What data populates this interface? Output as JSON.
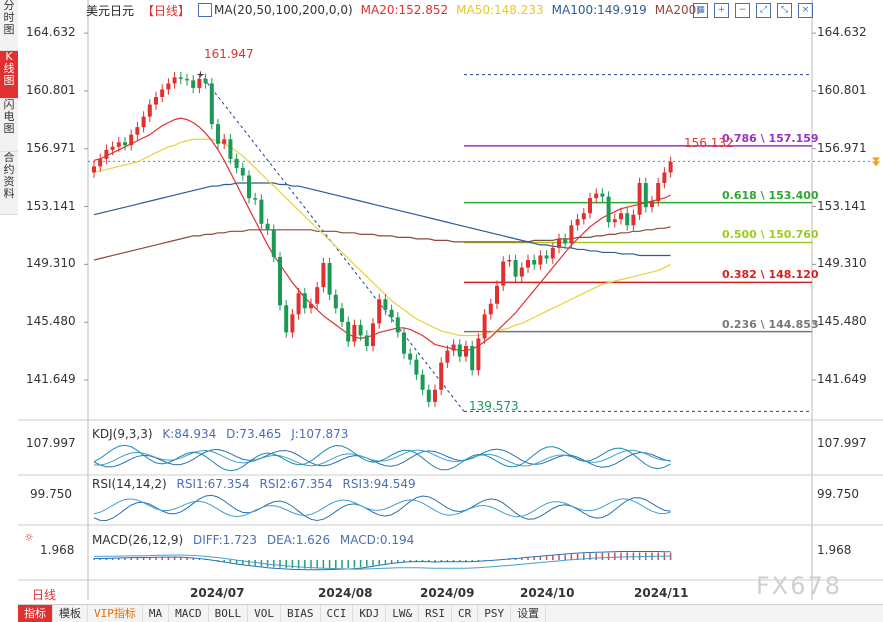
{
  "side_tabs": [
    {
      "label": "分时图",
      "active": false
    },
    {
      "label": "K线图",
      "active": true
    },
    {
      "label": "闪电图",
      "active": false
    },
    {
      "label": "合约资料",
      "active": false
    }
  ],
  "header": {
    "symbol": "美元日元",
    "timeframe": "【日线】",
    "ma_title": "MA(20,50,100,200,0,0)",
    "ma20": "MA20:152.852",
    "ma50": "MA50:148.233",
    "ma100": "MA100:149.919",
    "ma200": "MA200:"
  },
  "colors": {
    "up": "#e03030",
    "down": "#1a9a55",
    "ma20": "#e03030",
    "ma50": "#e8d23a",
    "ma100": "#2a5a9a",
    "ma200": "#8b4a3a",
    "accent": "#e03030"
  },
  "icons": [
    "grid-icon",
    "plus-icon",
    "minus-icon",
    "expand-icon",
    "shrink-icon",
    "close-icon"
  ],
  "y_axis": {
    "ticks": [
      "164.632",
      "160.801",
      "156.971",
      "153.141",
      "149.310",
      "145.480",
      "141.649"
    ]
  },
  "chart_data": {
    "type": "candlestick",
    "symbol": "USDJPY",
    "x_labels": [
      "2024/07",
      "2024/08",
      "2024/09",
      "2024/10",
      "2024/11"
    ],
    "ylim": [
      139.0,
      165.5
    ],
    "high_label": "161.947",
    "low_label": "139.573",
    "last_price": "156.132",
    "fib_levels": [
      {
        "label": "0.786 \\ 157.159",
        "value": 157.159,
        "color": "#9b30c8"
      },
      {
        "label": "0.618 \\ 153.400",
        "value": 153.4,
        "color": "#2fa82f"
      },
      {
        "label": "0.500 \\ 150.760",
        "value": 150.76,
        "color": "#9ccc20"
      },
      {
        "label": "0.382 \\ 148.120",
        "value": 148.12,
        "color": "#d42020"
      },
      {
        "label": "0.236 \\ 144.853",
        "value": 144.853,
        "color": "#777777"
      }
    ],
    "closes": [
      155.8,
      156.3,
      156.9,
      157.1,
      157.4,
      157.2,
      157.9,
      158.4,
      159.1,
      159.9,
      160.4,
      160.9,
      161.3,
      161.7,
      161.6,
      161.5,
      161.0,
      161.6,
      161.3,
      158.6,
      157.3,
      157.6,
      156.3,
      155.7,
      155.2,
      153.7,
      153.6,
      152.0,
      151.6,
      149.8,
      146.6,
      144.8,
      146.0,
      147.4,
      146.4,
      146.7,
      147.8,
      149.4,
      147.3,
      146.4,
      145.5,
      144.2,
      145.3,
      144.6,
      143.9,
      145.4,
      147.0,
      146.3,
      145.8,
      144.8,
      143.4,
      143.0,
      142.0,
      141.0,
      140.2,
      141.0,
      142.8,
      143.6,
      144.0,
      143.2,
      143.9,
      142.3,
      144.4,
      146.0,
      146.7,
      147.9,
      149.5,
      149.6,
      148.5,
      149.1,
      149.6,
      149.3,
      149.9,
      149.7,
      150.4,
      151.0,
      150.7,
      151.9,
      152.3,
      152.7,
      153.7,
      154.0,
      153.8,
      152.1,
      152.3,
      152.7,
      151.9,
      152.6,
      154.7,
      153.1,
      153.5,
      154.7,
      155.4,
      156.1
    ],
    "ma20": [
      156.2,
      156.3,
      156.5,
      156.7,
      156.9,
      157.1,
      157.3,
      157.5,
      157.7,
      157.9,
      158.2,
      158.5,
      158.7,
      158.9,
      159.0,
      158.9,
      158.7,
      158.4,
      158.0,
      157.5,
      156.9,
      156.2,
      155.4,
      154.6,
      153.8,
      153.0,
      152.2,
      151.4,
      150.6,
      149.9,
      149.3,
      148.7,
      148.1,
      147.6,
      147.1,
      146.7,
      146.3,
      145.9,
      145.6,
      145.3,
      145.0,
      144.7,
      144.5,
      144.4,
      144.5,
      144.6,
      144.8,
      144.9,
      145.0,
      145.1,
      145.1,
      145.0,
      144.8,
      144.6,
      144.3,
      144.0,
      143.9,
      143.8,
      143.7,
      143.6,
      143.6,
      143.7,
      143.9,
      144.2,
      144.5,
      144.9,
      145.3,
      145.7,
      146.1,
      146.6,
      147.1,
      147.6,
      148.1,
      148.6,
      149.1,
      149.6,
      150.1,
      150.6,
      151.0,
      151.4,
      151.8,
      152.1,
      152.4,
      152.6,
      152.8,
      153.0,
      153.1,
      153.2,
      153.3,
      153.4,
      153.5,
      153.6,
      153.7,
      153.9
    ],
    "ma50": [
      155.4,
      155.5,
      155.6,
      155.7,
      155.8,
      155.9,
      156.0,
      156.1,
      156.3,
      156.5,
      156.7,
      156.9,
      157.1,
      157.2,
      157.4,
      157.5,
      157.6,
      157.6,
      157.6,
      157.6,
      157.5,
      157.3,
      157.1,
      156.8,
      156.5,
      156.1,
      155.7,
      155.3,
      154.9,
      154.5,
      154.1,
      153.7,
      153.3,
      152.9,
      152.5,
      152.1,
      151.7,
      151.3,
      150.9,
      150.5,
      150.1,
      149.7,
      149.3,
      148.9,
      148.5,
      148.1,
      147.7,
      147.3,
      146.9,
      146.6,
      146.3,
      146.0,
      145.7,
      145.5,
      145.3,
      145.1,
      144.9,
      144.8,
      144.7,
      144.6,
      144.6,
      144.6,
      144.6,
      144.7,
      144.8,
      144.9,
      145.0,
      145.1,
      145.3,
      145.4,
      145.6,
      145.8,
      146.0,
      146.2,
      146.4,
      146.6,
      146.8,
      147.0,
      147.2,
      147.4,
      147.6,
      147.8,
      148.0,
      148.1,
      148.2,
      148.3,
      148.4,
      148.5,
      148.6,
      148.7,
      148.8,
      148.9,
      149.1,
      149.3
    ],
    "ma100": [
      152.6,
      152.7,
      152.8,
      152.9,
      153.0,
      153.1,
      153.2,
      153.3,
      153.4,
      153.5,
      153.6,
      153.7,
      153.8,
      153.9,
      154.0,
      154.1,
      154.2,
      154.3,
      154.4,
      154.5,
      154.5,
      154.6,
      154.6,
      154.7,
      154.7,
      154.7,
      154.7,
      154.7,
      154.7,
      154.7,
      154.6,
      154.6,
      154.5,
      154.5,
      154.4,
      154.3,
      154.2,
      154.1,
      154.0,
      153.9,
      153.8,
      153.7,
      153.6,
      153.5,
      153.4,
      153.3,
      153.2,
      153.1,
      153.0,
      152.9,
      152.8,
      152.7,
      152.6,
      152.5,
      152.4,
      152.3,
      152.2,
      152.1,
      152.0,
      151.9,
      151.8,
      151.7,
      151.6,
      151.5,
      151.4,
      151.3,
      151.2,
      151.1,
      151.0,
      150.9,
      150.8,
      150.7,
      150.6,
      150.6,
      150.5,
      150.5,
      150.4,
      150.4,
      150.3,
      150.3,
      150.2,
      150.2,
      150.1,
      150.1,
      150.1,
      150.0,
      150.0,
      150.0,
      149.9,
      149.9,
      149.9,
      149.9,
      149.9,
      149.9
    ],
    "ma200": [
      149.6,
      149.7,
      149.8,
      149.9,
      150.0,
      150.1,
      150.2,
      150.3,
      150.4,
      150.5,
      150.6,
      150.7,
      150.8,
      150.9,
      151.0,
      151.1,
      151.2,
      151.2,
      151.3,
      151.3,
      151.4,
      151.4,
      151.5,
      151.5,
      151.5,
      151.6,
      151.6,
      151.6,
      151.6,
      151.6,
      151.6,
      151.6,
      151.6,
      151.6,
      151.6,
      151.6,
      151.5,
      151.5,
      151.5,
      151.5,
      151.4,
      151.4,
      151.4,
      151.3,
      151.3,
      151.3,
      151.2,
      151.2,
      151.2,
      151.1,
      151.1,
      151.1,
      151.0,
      151.0,
      151.0,
      150.9,
      150.9,
      150.9,
      150.8,
      150.8,
      150.8,
      150.8,
      150.8,
      150.8,
      150.8,
      150.8,
      150.8,
      150.8,
      150.8,
      150.8,
      150.8,
      150.9,
      150.9,
      150.9,
      150.9,
      151.0,
      151.0,
      151.0,
      151.1,
      151.1,
      151.1,
      151.2,
      151.2,
      151.3,
      151.3,
      151.4,
      151.4,
      151.5,
      151.5,
      151.6,
      151.6,
      151.7,
      151.7,
      151.8
    ]
  },
  "kdj": {
    "title": "KDJ(9,3,3)",
    "k": "K:84.934",
    "d": "D:73.465",
    "j": "J:107.873",
    "axis": "107.997"
  },
  "rsi": {
    "title": "RSI(14,14,2)",
    "rsi1": "RSI1:67.354",
    "rsi2": "RSI2:67.354",
    "rsi3": "RSI3:94.549",
    "axis": "99.750"
  },
  "macd": {
    "title": "MACD(26,12,9)",
    "diff": "DIFF:1.723",
    "dea": "DEA:1.626",
    "macd": "MACD:0.194",
    "axis": "1.968"
  },
  "timeframe_button": "日线",
  "bottom_tabs": [
    "指标",
    "模板",
    "VIP指标",
    "MA",
    "MACD",
    "BOLL",
    "VOL",
    "BIAS",
    "CCI",
    "KDJ",
    "LW&",
    "RSI",
    "CR",
    "PSY",
    "设置"
  ],
  "watermark": "FX678"
}
